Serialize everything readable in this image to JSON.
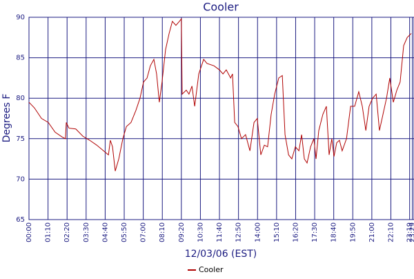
{
  "chart_data": {
    "type": "line",
    "title": "Cooler",
    "x_label": "12/03/06 (EST)",
    "y_label": "Degrees F",
    "x": [
      0,
      20,
      46,
      71,
      96,
      122,
      134,
      137,
      147,
      172,
      198,
      223,
      249,
      274,
      292,
      299,
      307,
      317,
      330,
      345,
      358,
      375,
      393,
      408,
      421,
      434,
      446,
      459,
      469,
      479,
      489,
      502,
      515,
      527,
      540,
      553,
      560,
      563,
      578,
      588,
      599,
      609,
      624,
      642,
      654,
      680,
      700,
      713,
      725,
      741,
      748,
      756,
      768,
      781,
      796,
      812,
      827,
      839,
      852,
      865,
      877,
      890,
      903,
      918,
      931,
      941,
      954,
      966,
      979,
      992,
      1002,
      1012,
      1022,
      1035,
      1047,
      1055,
      1065,
      1080,
      1093,
      1103,
      1113,
      1121,
      1131,
      1141,
      1151,
      1167,
      1182,
      1197,
      1212,
      1225,
      1238,
      1250,
      1263,
      1276,
      1288,
      1301,
      1314,
      1326,
      1339,
      1352,
      1364,
      1377,
      1390,
      1405
    ],
    "series": [
      {
        "name": "Cooler",
        "color": "#b00000",
        "values": [
          79.5,
          78.8,
          77.5,
          77,
          75.8,
          75.2,
          75,
          77,
          76.3,
          76.2,
          75.3,
          74.8,
          74.2,
          73.5,
          73,
          74.8,
          74,
          71,
          72.5,
          75,
          76.5,
          77,
          78.5,
          80,
          82,
          82.5,
          84,
          84.8,
          83,
          79.5,
          82,
          86,
          88,
          89.5,
          89,
          89.5,
          89.8,
          80.5,
          81,
          80.5,
          81.5,
          79,
          83,
          84.8,
          84.3,
          84,
          83.5,
          83,
          83.5,
          82.5,
          83,
          77,
          76.5,
          75,
          75.5,
          73.5,
          77,
          77.5,
          73,
          74.2,
          74,
          78,
          80.5,
          82.5,
          82.8,
          75.5,
          73,
          72.5,
          74,
          73.5,
          75.5,
          72.5,
          72,
          74,
          75,
          72.5,
          76,
          78,
          79,
          73,
          75,
          72.8,
          74.5,
          74.8,
          73.5,
          75,
          79,
          79,
          80.8,
          79,
          76,
          79,
          80,
          80.5,
          76,
          78,
          80,
          82.5,
          79.5,
          81,
          82,
          86.5,
          87.5,
          88
        ]
      }
    ],
    "xlim": [
      0,
      1415
    ],
    "ylim": [
      65,
      90
    ],
    "xticks": [
      {
        "value": 0,
        "label": "00:00"
      },
      {
        "value": 70,
        "label": "01:10"
      },
      {
        "value": 140,
        "label": "02:20"
      },
      {
        "value": 210,
        "label": "03:30"
      },
      {
        "value": 280,
        "label": "04:40"
      },
      {
        "value": 350,
        "label": "05:50"
      },
      {
        "value": 420,
        "label": "07:00"
      },
      {
        "value": 490,
        "label": "08:10"
      },
      {
        "value": 560,
        "label": "09:20"
      },
      {
        "value": 630,
        "label": "10:30"
      },
      {
        "value": 700,
        "label": "11:40"
      },
      {
        "value": 770,
        "label": "12:50"
      },
      {
        "value": 840,
        "label": "14:00"
      },
      {
        "value": 910,
        "label": "15:10"
      },
      {
        "value": 980,
        "label": "16:20"
      },
      {
        "value": 1050,
        "label": "17:30"
      },
      {
        "value": 1120,
        "label": "18:40"
      },
      {
        "value": 1190,
        "label": "19:50"
      },
      {
        "value": 1260,
        "label": "21:00"
      },
      {
        "value": 1330,
        "label": "22:10"
      },
      {
        "value": 1399,
        "label": "23:19"
      },
      {
        "value": 1409,
        "label": "23:29"
      }
    ],
    "yticks": [
      65,
      70,
      75,
      80,
      85,
      90
    ],
    "grid": true
  }
}
